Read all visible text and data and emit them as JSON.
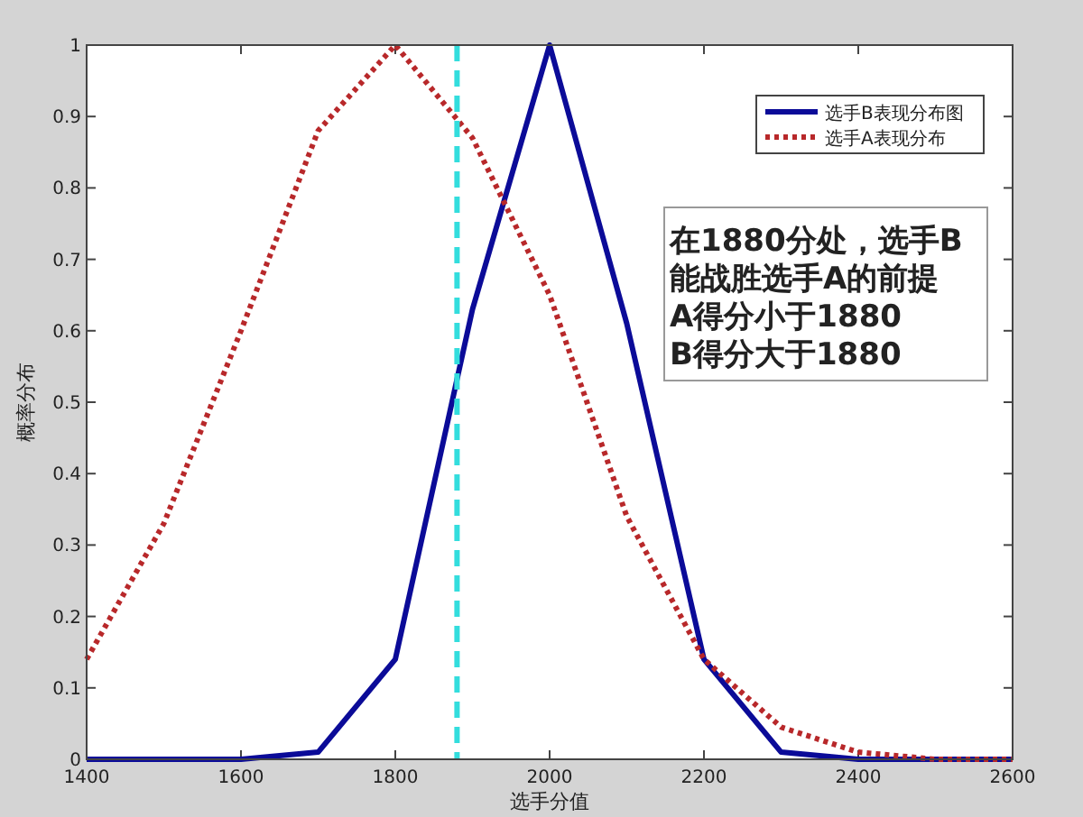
{
  "chart_data": {
    "type": "line",
    "xlabel": "选手分值",
    "ylabel": "概率分布",
    "x": [
      1400,
      1500,
      1600,
      1700,
      1800,
      1900,
      2000,
      2100,
      2200,
      2300,
      2400,
      2500,
      2600
    ],
    "series": [
      {
        "name": "选手B表现分布图",
        "color": "#0b0b98",
        "line_style": "solid",
        "values": [
          0,
          0,
          0,
          0.01,
          0.14,
          0.63,
          1.0,
          0.61,
          0.14,
          0.01,
          0,
          0,
          0
        ]
      },
      {
        "name": "选手A表现分布",
        "color": "#b8282a",
        "line_style": "dotted",
        "values": [
          0.14,
          0.33,
          0.6,
          0.88,
          1.0,
          0.87,
          0.65,
          0.34,
          0.14,
          0.045,
          0.01,
          0,
          0
        ]
      }
    ],
    "xlim": [
      1400,
      2600
    ],
    "xticks": [
      1400,
      1600,
      1800,
      2000,
      2200,
      2400,
      2600
    ],
    "ylim": [
      0,
      1
    ],
    "yticks": [
      0,
      0.1,
      0.2,
      0.3,
      0.4,
      0.5,
      0.6,
      0.7,
      0.8,
      0.9,
      1
    ],
    "ref_lines": [
      {
        "axis": "x",
        "value": 1880,
        "color": "#33dddd",
        "line_style": "dashed"
      }
    ],
    "annotations": [
      "在1880分处，选手B",
      "能战胜选手A的前提",
      "A得分小于1880",
      "B得分大于1880"
    ],
    "legend": "top right",
    "marker": "none",
    "grid": false
  }
}
